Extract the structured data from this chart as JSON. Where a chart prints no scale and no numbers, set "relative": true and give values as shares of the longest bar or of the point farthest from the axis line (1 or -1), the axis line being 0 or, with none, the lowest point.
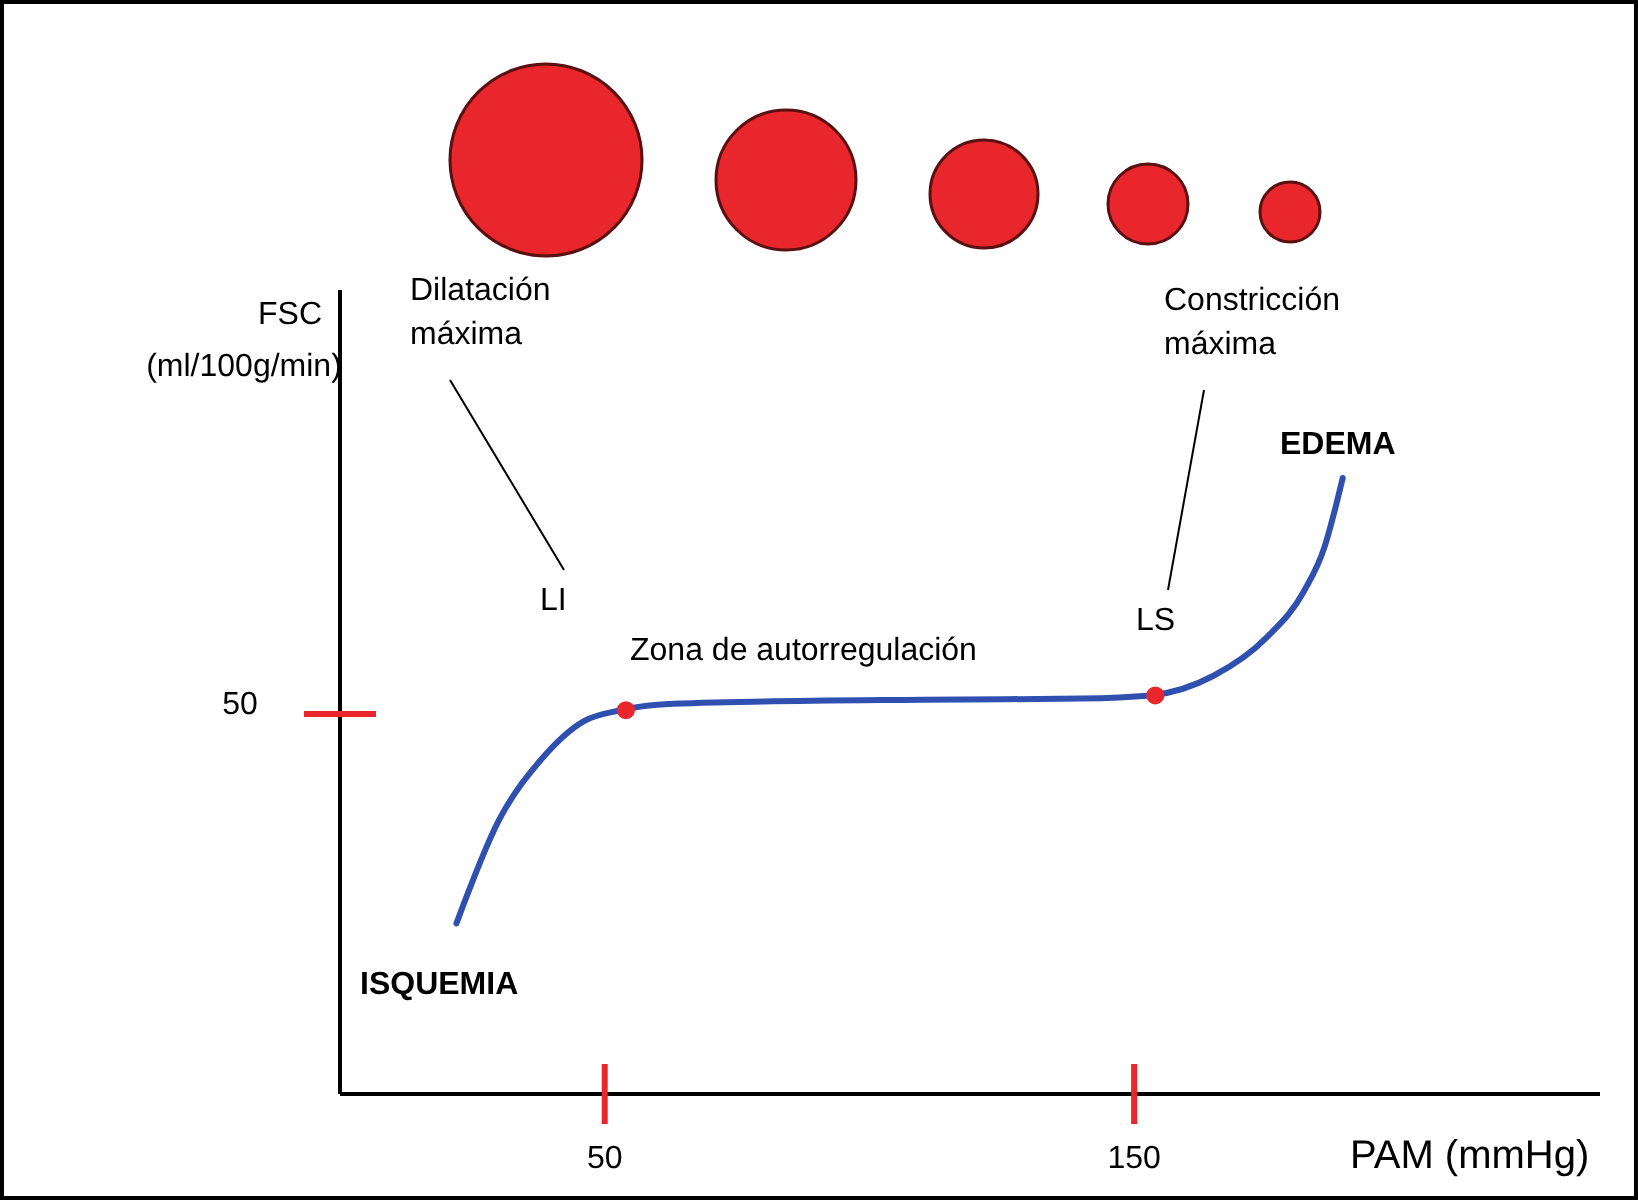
{
  "chart_data": {
    "type": "line",
    "relative": true,
    "xlabel": "PAM (mmHg)",
    "ylabel": "FSC\n(ml/100g/min)",
    "xlim": [
      0,
      238
    ],
    "xticks": [
      50,
      150
    ],
    "series": [
      {
        "color": "#3050b0",
        "marker": "none",
        "x": [
          22,
          30,
          38,
          46,
          53,
          60,
          80,
          110,
          140,
          153,
          165,
          175,
          182,
          186,
          188,
          189.4
        ],
        "values": [
          0.277,
          0.444,
          0.543,
          0.605,
          0.623,
          0.632,
          0.637,
          0.64,
          0.642,
          0.647,
          0.679,
          0.741,
          0.815,
          0.889,
          0.951,
          1
        ]
      },
      {
        "type": "scatter",
        "color": "#e8262c",
        "marker": "circle",
        "x": [
          54,
          154
        ],
        "values": [
          0.623,
          0.647
        ]
      }
    ],
    "annotations": [
      "Dilatación máxima",
      "Constricción máxima",
      "LI",
      "LS",
      "Zona de autorregulación",
      "ISQUEMIA",
      "EDEMA",
      "50"
    ]
  }
}
